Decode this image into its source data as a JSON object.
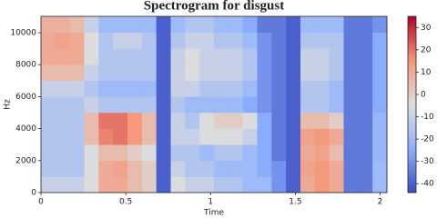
{
  "chart_data": {
    "type": "heatmap",
    "title": "Spectrogram for disgust",
    "x_label": "Time",
    "y_label": "Hz",
    "xlim": [
      0,
      2.04
    ],
    "ylim": [
      0,
      11025
    ],
    "xticks": [
      0,
      0.5,
      1,
      1.5,
      2
    ],
    "yticks": [
      0,
      2000,
      4000,
      6000,
      8000,
      10000
    ],
    "colormap": "coolwarm",
    "clim": [
      -44,
      35
    ],
    "colorbar_ticks": [
      30,
      20,
      10,
      0,
      -10,
      -20,
      -30,
      -40
    ],
    "values": [
      [
        -10,
        -10,
        -10,
        -5,
        10,
        10,
        5,
        0,
        -40,
        -5,
        -10,
        -10,
        -15,
        -15,
        -20,
        -20,
        -30,
        -40,
        10,
        15,
        10,
        -35,
        -35,
        -20
      ],
      [
        -15,
        -15,
        -15,
        -5,
        10,
        12,
        5,
        0,
        -40,
        -10,
        -15,
        -15,
        -20,
        -20,
        -20,
        -25,
        -30,
        -40,
        12,
        15,
        10,
        -35,
        -35,
        -20
      ],
      [
        -15,
        -15,
        -15,
        -5,
        5,
        5,
        0,
        -5,
        -40,
        -15,
        -15,
        -20,
        -15,
        -15,
        -20,
        -25,
        -35,
        -40,
        10,
        12,
        5,
        -35,
        -35,
        -22
      ],
      [
        -15,
        -15,
        -15,
        5,
        18,
        20,
        15,
        5,
        -40,
        -10,
        -10,
        -5,
        -5,
        -5,
        -10,
        -25,
        -35,
        -40,
        12,
        15,
        10,
        -35,
        -35,
        -22
      ],
      [
        -15,
        -15,
        -15,
        5,
        20,
        20,
        15,
        5,
        -40,
        -10,
        -15,
        -5,
        0,
        0,
        -5,
        -25,
        -35,
        -40,
        5,
        5,
        0,
        -35,
        -35,
        -22
      ],
      [
        -15,
        -15,
        -15,
        -10,
        -15,
        -15,
        -15,
        -15,
        -40,
        -15,
        -20,
        -20,
        -20,
        -20,
        -25,
        -30,
        -35,
        -40,
        -15,
        -15,
        -20,
        -35,
        -35,
        -25
      ],
      [
        -10,
        -10,
        -10,
        -15,
        -20,
        -20,
        -20,
        -20,
        -40,
        -10,
        -10,
        -15,
        -15,
        -15,
        -20,
        -30,
        -35,
        -40,
        -15,
        -15,
        -20,
        -35,
        -35,
        -25
      ],
      [
        5,
        5,
        5,
        -10,
        -15,
        -15,
        -15,
        -15,
        -40,
        -10,
        -5,
        -10,
        -10,
        -10,
        -15,
        -30,
        -35,
        -40,
        -10,
        -10,
        -15,
        -35,
        -35,
        -25
      ],
      [
        10,
        10,
        10,
        -5,
        -15,
        -15,
        -15,
        -15,
        -40,
        -10,
        -5,
        -10,
        -10,
        -10,
        -15,
        -30,
        -35,
        -40,
        -10,
        -10,
        -15,
        -35,
        -35,
        -25
      ],
      [
        10,
        12,
        10,
        -5,
        -15,
        -10,
        -10,
        -15,
        -40,
        -15,
        -10,
        -10,
        -15,
        -15,
        -20,
        -30,
        -35,
        -40,
        -15,
        -15,
        -15,
        -35,
        -35,
        -25
      ],
      [
        8,
        8,
        5,
        -10,
        -20,
        -20,
        -20,
        -20,
        -40,
        -20,
        -15,
        -15,
        -20,
        -20,
        -25,
        -35,
        -35,
        -40,
        -20,
        -20,
        -20,
        -35,
        -35,
        -30
      ]
    ]
  }
}
